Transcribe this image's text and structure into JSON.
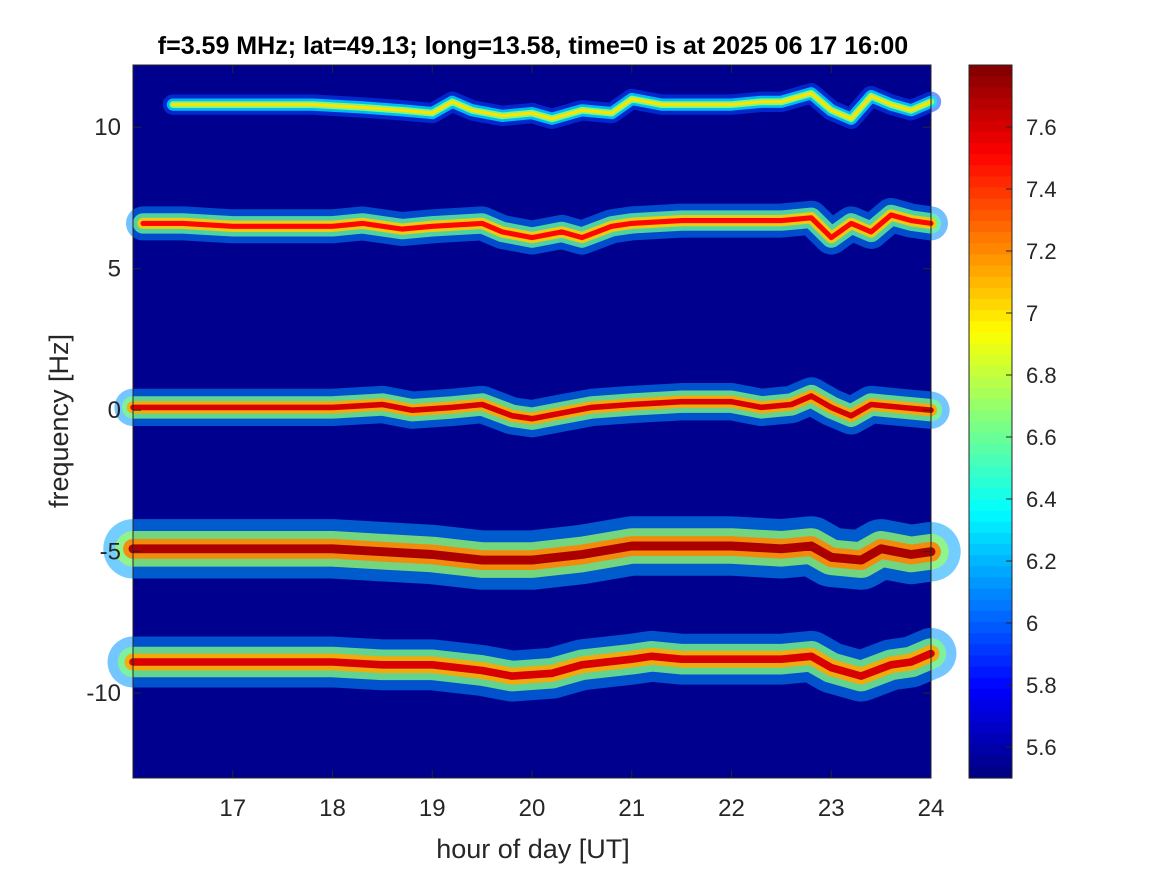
{
  "chart_data": {
    "type": "heatmap",
    "title": "f=3.59 MHz;  lat=49.13; long=13.58, time=0 is at 2025 06 17 16:00",
    "xlabel": "hour of day [UT]",
    "ylabel": "frequency [Hz]",
    "xlim": [
      16,
      24
    ],
    "ylim": [
      -13,
      12.2
    ],
    "x_ticks": [
      17,
      18,
      19,
      20,
      21,
      22,
      23,
      24
    ],
    "x_tick_labels": [
      "17",
      "18",
      "19",
      "20",
      "21",
      "22",
      "23",
      "24"
    ],
    "y_ticks": [
      10,
      5,
      0,
      -5,
      -10
    ],
    "y_tick_labels": [
      "10",
      "5",
      "0",
      "-5",
      "-10"
    ],
    "colorbar": {
      "range": [
        5.5,
        7.8
      ],
      "ticks": [
        7.6,
        7.4,
        7.2,
        7,
        6.8,
        6.6,
        6.4,
        6.2,
        6,
        5.8,
        5.6
      ],
      "tick_labels": [
        "7.6",
        "7.4",
        "7.2",
        "7",
        "6.8",
        "6.6",
        "6.4",
        "6.2",
        "6",
        "5.8",
        "5.6"
      ],
      "colormap": "jet"
    },
    "background_value": 5.5,
    "traces": [
      {
        "center_hz": 10.7,
        "x_start": 16.4,
        "points": [
          [
            16.4,
            10.8
          ],
          [
            17.0,
            10.8
          ],
          [
            17.8,
            10.8
          ],
          [
            18.3,
            10.7
          ],
          [
            18.7,
            10.6
          ],
          [
            19.0,
            10.5
          ],
          [
            19.2,
            10.9
          ],
          [
            19.4,
            10.6
          ],
          [
            19.7,
            10.4
          ],
          [
            20.0,
            10.5
          ],
          [
            20.2,
            10.3
          ],
          [
            20.5,
            10.6
          ],
          [
            20.8,
            10.5
          ],
          [
            21.0,
            11.0
          ],
          [
            21.3,
            10.8
          ],
          [
            21.6,
            10.8
          ],
          [
            22.0,
            10.8
          ],
          [
            22.3,
            10.9
          ],
          [
            22.5,
            10.9
          ],
          [
            22.8,
            11.2
          ],
          [
            23.0,
            10.6
          ],
          [
            23.2,
            10.3
          ],
          [
            23.4,
            11.1
          ],
          [
            23.6,
            10.8
          ],
          [
            23.8,
            10.6
          ],
          [
            24.0,
            10.9
          ]
        ],
        "peak_value": 7.0,
        "width_hz": 0.12
      },
      {
        "center_hz": 6.5,
        "x_start": 16.1,
        "points": [
          [
            16.1,
            6.6
          ],
          [
            16.5,
            6.6
          ],
          [
            17.0,
            6.5
          ],
          [
            17.5,
            6.5
          ],
          [
            18.0,
            6.5
          ],
          [
            18.3,
            6.6
          ],
          [
            18.7,
            6.4
          ],
          [
            19.0,
            6.5
          ],
          [
            19.5,
            6.6
          ],
          [
            19.7,
            6.3
          ],
          [
            20.0,
            6.1
          ],
          [
            20.3,
            6.3
          ],
          [
            20.5,
            6.1
          ],
          [
            20.8,
            6.5
          ],
          [
            21.0,
            6.6
          ],
          [
            21.5,
            6.7
          ],
          [
            22.0,
            6.7
          ],
          [
            22.5,
            6.7
          ],
          [
            22.8,
            6.8
          ],
          [
            23.0,
            6.1
          ],
          [
            23.2,
            6.6
          ],
          [
            23.4,
            6.3
          ],
          [
            23.6,
            6.9
          ],
          [
            23.8,
            6.7
          ],
          [
            24.0,
            6.6
          ]
        ],
        "peak_value": 7.5,
        "width_hz": 0.2
      },
      {
        "center_hz": 0.1,
        "x_start": 16.0,
        "points": [
          [
            16.0,
            0.1
          ],
          [
            16.5,
            0.1
          ],
          [
            17.0,
            0.1
          ],
          [
            17.5,
            0.1
          ],
          [
            18.0,
            0.1
          ],
          [
            18.5,
            0.2
          ],
          [
            18.8,
            0.0
          ],
          [
            19.2,
            0.1
          ],
          [
            19.5,
            0.2
          ],
          [
            19.8,
            -0.2
          ],
          [
            20.0,
            -0.3
          ],
          [
            20.3,
            -0.1
          ],
          [
            20.6,
            0.1
          ],
          [
            21.0,
            0.2
          ],
          [
            21.5,
            0.3
          ],
          [
            22.0,
            0.3
          ],
          [
            22.3,
            0.1
          ],
          [
            22.6,
            0.2
          ],
          [
            22.8,
            0.5
          ],
          [
            23.0,
            0.1
          ],
          [
            23.2,
            -0.2
          ],
          [
            23.4,
            0.2
          ],
          [
            23.7,
            0.1
          ],
          [
            24.0,
            0.0
          ]
        ],
        "peak_value": 7.6,
        "width_hz": 0.22
      },
      {
        "center_hz": -4.9,
        "x_start": 16.0,
        "points": [
          [
            16.0,
            -4.9
          ],
          [
            16.5,
            -4.9
          ],
          [
            17.0,
            -4.9
          ],
          [
            17.5,
            -4.9
          ],
          [
            18.0,
            -4.9
          ],
          [
            18.5,
            -5.0
          ],
          [
            19.0,
            -5.1
          ],
          [
            19.5,
            -5.3
          ],
          [
            20.0,
            -5.3
          ],
          [
            20.5,
            -5.1
          ],
          [
            21.0,
            -4.8
          ],
          [
            21.5,
            -4.8
          ],
          [
            22.0,
            -4.8
          ],
          [
            22.5,
            -4.9
          ],
          [
            22.8,
            -4.8
          ],
          [
            23.0,
            -5.2
          ],
          [
            23.3,
            -5.3
          ],
          [
            23.5,
            -4.9
          ],
          [
            23.8,
            -5.1
          ],
          [
            24.0,
            -5.0
          ]
        ],
        "peak_value": 7.7,
        "width_hz": 0.35
      },
      {
        "center_hz": -8.9,
        "x_start": 16.0,
        "points": [
          [
            16.0,
            -8.9
          ],
          [
            16.5,
            -8.9
          ],
          [
            17.0,
            -8.9
          ],
          [
            17.5,
            -8.9
          ],
          [
            18.0,
            -8.9
          ],
          [
            18.5,
            -9.0
          ],
          [
            19.0,
            -9.0
          ],
          [
            19.5,
            -9.2
          ],
          [
            19.8,
            -9.4
          ],
          [
            20.2,
            -9.3
          ],
          [
            20.5,
            -9.0
          ],
          [
            21.0,
            -8.8
          ],
          [
            21.2,
            -8.7
          ],
          [
            21.5,
            -8.8
          ],
          [
            22.0,
            -8.8
          ],
          [
            22.5,
            -8.8
          ],
          [
            22.8,
            -8.7
          ],
          [
            23.0,
            -9.1
          ],
          [
            23.3,
            -9.4
          ],
          [
            23.6,
            -9.0
          ],
          [
            23.8,
            -8.9
          ],
          [
            24.0,
            -8.6
          ]
        ],
        "peak_value": 7.6,
        "width_hz": 0.3
      }
    ]
  }
}
